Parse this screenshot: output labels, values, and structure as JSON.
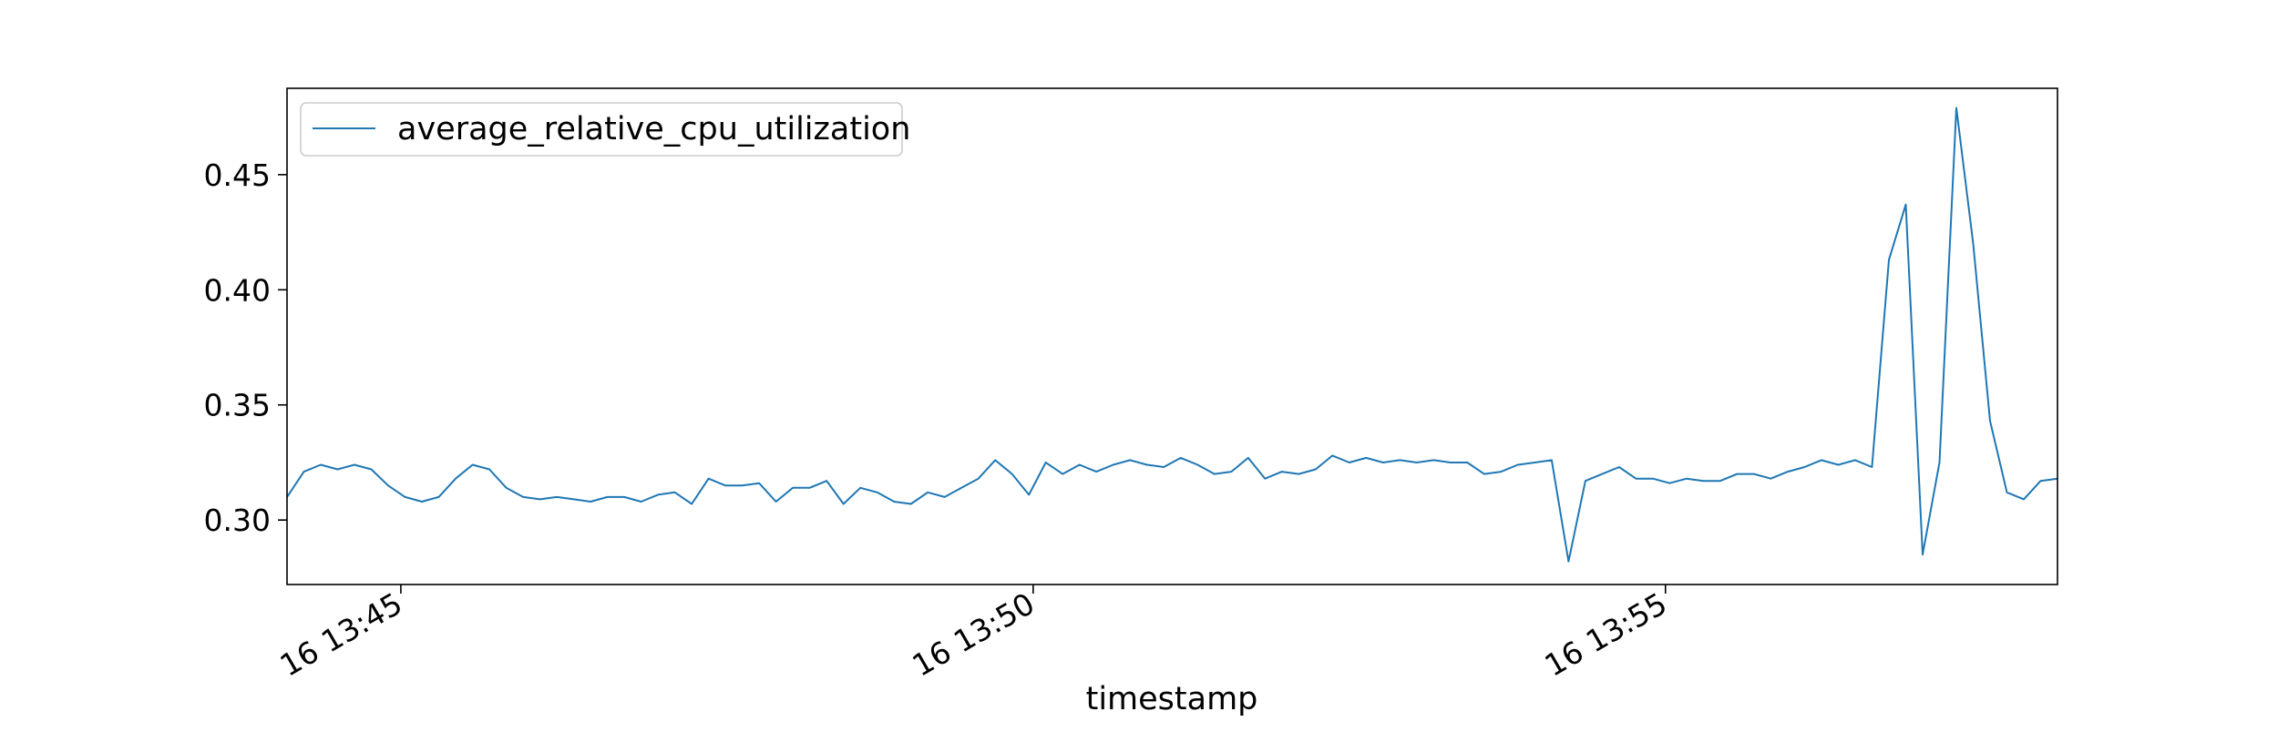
{
  "chart_data": {
    "type": "line",
    "title": "",
    "xlabel": "timestamp",
    "ylabel": "",
    "x_tick_labels": [
      "16 13:45",
      "16 13:50",
      "16 13:55"
    ],
    "y_tick_labels": [
      "0.30",
      "0.35",
      "0.40",
      "0.45"
    ],
    "y_ticks": [
      0.3,
      0.35,
      0.4,
      0.45
    ],
    "ylim": [
      0.272,
      0.4875
    ],
    "xlim": [
      "13:44:06",
      "13:58:06"
    ],
    "x_tick_times": [
      "13:45:00",
      "13:50:00",
      "13:55:00"
    ],
    "grid": false,
    "legend_position": "top-left",
    "series": [
      {
        "name": "average_relative_cpu_utilization",
        "color": "#1f77b4",
        "x": [
          "13:44:06",
          "13:44:14",
          "13:44:22",
          "13:44:30",
          "13:44:38",
          "13:44:46",
          "13:44:54",
          "13:45:02",
          "13:45:10",
          "13:45:18",
          "13:45:26",
          "13:45:34",
          "13:45:42",
          "13:45:50",
          "13:45:58",
          "13:46:06",
          "13:46:14",
          "13:46:22",
          "13:46:30",
          "13:46:38",
          "13:46:46",
          "13:46:54",
          "13:47:02",
          "13:47:10",
          "13:47:18",
          "13:47:26",
          "13:47:34",
          "13:47:42",
          "13:47:50",
          "13:47:58",
          "13:48:06",
          "13:48:14",
          "13:48:22",
          "13:48:30",
          "13:48:38",
          "13:48:46",
          "13:48:54",
          "13:49:02",
          "13:49:10",
          "13:49:18",
          "13:49:26",
          "13:49:34",
          "13:49:42",
          "13:49:50",
          "13:49:58",
          "13:50:06",
          "13:50:14",
          "13:50:22",
          "13:50:30",
          "13:50:38",
          "13:50:46",
          "13:50:54",
          "13:51:02",
          "13:51:10",
          "13:51:18",
          "13:51:26",
          "13:51:34",
          "13:51:42",
          "13:51:50",
          "13:51:58",
          "13:52:06",
          "13:52:14",
          "13:52:22",
          "13:52:30",
          "13:52:38",
          "13:52:46",
          "13:52:54",
          "13:53:02",
          "13:53:10",
          "13:53:18",
          "13:53:26",
          "13:53:34",
          "13:53:42",
          "13:53:50",
          "13:53:58",
          "13:54:06",
          "13:54:14",
          "13:54:22",
          "13:54:30",
          "13:54:38",
          "13:54:46",
          "13:54:54",
          "13:55:02",
          "13:55:10",
          "13:55:18",
          "13:55:26",
          "13:55:34",
          "13:55:42",
          "13:55:50",
          "13:55:58",
          "13:56:06",
          "13:56:14",
          "13:56:22",
          "13:56:30",
          "13:56:38",
          "13:56:46",
          "13:56:54",
          "13:57:02",
          "13:57:10",
          "13:57:18",
          "13:57:26",
          "13:57:34",
          "13:57:42",
          "13:57:50",
          "13:57:58",
          "13:58:06"
        ],
        "values": [
          0.31,
          0.321,
          0.324,
          0.322,
          0.324,
          0.322,
          0.315,
          0.31,
          0.308,
          0.31,
          0.318,
          0.324,
          0.322,
          0.314,
          0.31,
          0.309,
          0.31,
          0.309,
          0.308,
          0.31,
          0.31,
          0.308,
          0.311,
          0.312,
          0.307,
          0.318,
          0.315,
          0.315,
          0.316,
          0.308,
          0.314,
          0.314,
          0.317,
          0.307,
          0.314,
          0.312,
          0.308,
          0.307,
          0.312,
          0.31,
          0.314,
          0.318,
          0.326,
          0.32,
          0.311,
          0.325,
          0.32,
          0.324,
          0.321,
          0.324,
          0.326,
          0.324,
          0.323,
          0.327,
          0.324,
          0.32,
          0.321,
          0.327,
          0.318,
          0.321,
          0.32,
          0.322,
          0.328,
          0.325,
          0.327,
          0.325,
          0.326,
          0.325,
          0.326,
          0.325,
          0.325,
          0.32,
          0.321,
          0.324,
          0.325,
          0.326,
          0.282,
          0.317,
          0.32,
          0.323,
          0.318,
          0.318,
          0.316,
          0.318,
          0.317,
          0.317,
          0.32,
          0.32,
          0.318,
          0.321,
          0.323,
          0.326,
          0.324,
          0.326,
          0.323,
          0.413,
          0.437,
          0.285,
          0.325,
          0.479,
          0.42,
          0.343,
          0.312,
          0.309,
          0.317,
          0.318
        ]
      }
    ]
  }
}
